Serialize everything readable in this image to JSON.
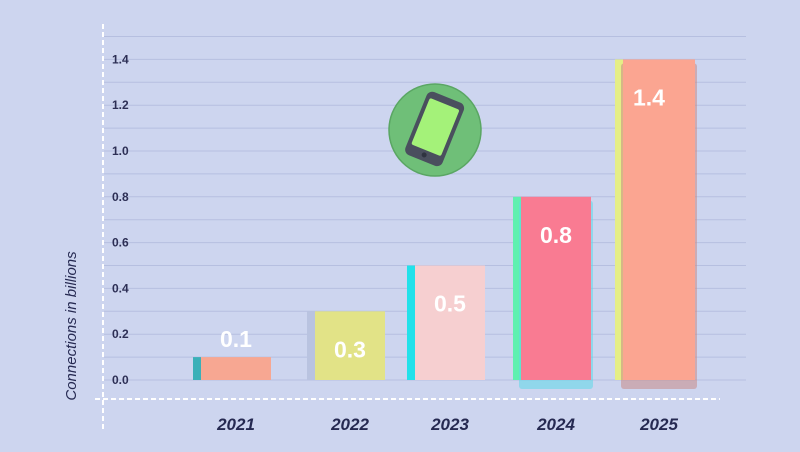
{
  "chart_data": {
    "type": "bar",
    "categories": [
      "2021",
      "2022",
      "2023",
      "2024",
      "2025"
    ],
    "values": [
      0.1,
      0.3,
      0.5,
      0.8,
      1.4
    ],
    "data_labels": [
      "0.1",
      "0.3",
      "0.5",
      "0.8",
      "1.4"
    ],
    "title": "",
    "xlabel": "",
    "ylabel": "Connections in billions",
    "ylim": [
      0,
      1.4
    ],
    "yticks": [
      "0.0",
      "0.2",
      "0.4",
      "0.6",
      "0.8",
      "1.0",
      "1.2",
      "1.4"
    ],
    "grid": true,
    "bar_colors": [
      "#f7a792",
      "#e2e387",
      "#f6cfd0",
      "#f97b92",
      "#fba591"
    ],
    "accent_colors": [
      "#3bb0b8",
      "#b9c3e0",
      "#22e1ea",
      "#5ff0b0",
      "#e5ee86"
    ]
  },
  "icons": {
    "badge": "smartphone-icon",
    "badge_bg": "#6fbf78",
    "screen": "#a4f279"
  },
  "colors": {
    "background": "#cdd5ef",
    "gridline": "#b6bfe0",
    "axis": "#ffffff"
  }
}
